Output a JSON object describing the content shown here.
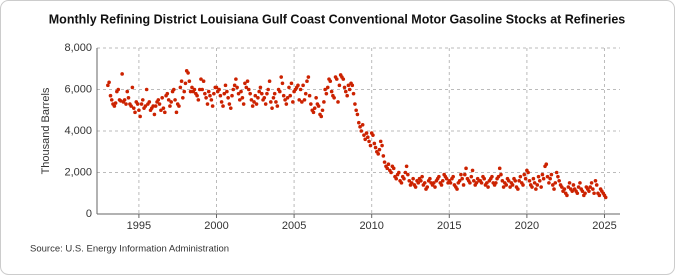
{
  "chart_data": {
    "type": "scatter",
    "title": "Monthly Refining District Louisiana Gulf Coast Conventional Motor Gasoline Stocks at Refineries",
    "y_label": "Thousand Barrels",
    "source": "Source: U.S. Energy Information Administration",
    "color": "#cc2200",
    "grid": true,
    "xlim": [
      1992.3,
      2026
    ],
    "xticks": [
      1995,
      2000,
      2005,
      2010,
      2015,
      2020,
      2025
    ],
    "ylim": [
      0,
      8000
    ],
    "yticks": [
      0,
      {
        "value": 2000,
        "label": "2,000"
      },
      {
        "value": 4000,
        "label": "4,000"
      },
      {
        "value": 6000,
        "label": "6,000"
      },
      {
        "value": 8000,
        "label": "8,000"
      }
    ],
    "x": [
      1993.0,
      1993.08,
      1993.17,
      1993.25,
      1993.33,
      1993.42,
      1993.5,
      1993.58,
      1993.67,
      1993.75,
      1993.83,
      1993.92,
      1994.0,
      1994.08,
      1994.17,
      1994.25,
      1994.33,
      1994.42,
      1994.5,
      1994.58,
      1994.67,
      1994.75,
      1994.83,
      1994.92,
      1995.0,
      1995.08,
      1995.17,
      1995.25,
      1995.33,
      1995.42,
      1995.5,
      1995.58,
      1995.67,
      1995.75,
      1995.83,
      1995.92,
      1996.0,
      1996.08,
      1996.17,
      1996.25,
      1996.33,
      1996.42,
      1996.5,
      1996.58,
      1996.67,
      1996.75,
      1996.83,
      1996.92,
      1997.0,
      1997.08,
      1997.17,
      1997.25,
      1997.33,
      1997.42,
      1997.5,
      1997.58,
      1997.67,
      1997.75,
      1997.83,
      1997.92,
      1998.0,
      1998.08,
      1998.17,
      1998.25,
      1998.33,
      1998.42,
      1998.5,
      1998.58,
      1998.67,
      1998.75,
      1998.83,
      1998.92,
      1999.0,
      1999.08,
      1999.17,
      1999.25,
      1999.33,
      1999.42,
      1999.5,
      1999.58,
      1999.67,
      1999.75,
      1999.83,
      1999.92,
      2000.0,
      2000.08,
      2000.17,
      2000.25,
      2000.33,
      2000.42,
      2000.5,
      2000.58,
      2000.67,
      2000.75,
      2000.83,
      2000.92,
      2001.0,
      2001.08,
      2001.17,
      2001.25,
      2001.33,
      2001.42,
      2001.5,
      2001.58,
      2001.67,
      2001.75,
      2001.83,
      2001.92,
      2002.0,
      2002.08,
      2002.17,
      2002.25,
      2002.33,
      2002.42,
      2002.5,
      2002.58,
      2002.67,
      2002.75,
      2002.83,
      2002.92,
      2003.0,
      2003.08,
      2003.17,
      2003.25,
      2003.33,
      2003.42,
      2003.5,
      2003.58,
      2003.67,
      2003.75,
      2003.83,
      2003.92,
      2004.0,
      2004.08,
      2004.17,
      2004.25,
      2004.33,
      2004.42,
      2004.5,
      2004.58,
      2004.67,
      2004.75,
      2004.83,
      2004.92,
      2005.0,
      2005.08,
      2005.17,
      2005.25,
      2005.33,
      2005.42,
      2005.5,
      2005.58,
      2005.67,
      2005.75,
      2005.83,
      2005.92,
      2006.0,
      2006.08,
      2006.17,
      2006.25,
      2006.33,
      2006.42,
      2006.5,
      2006.58,
      2006.67,
      2006.75,
      2006.83,
      2006.92,
      2007.0,
      2007.08,
      2007.17,
      2007.25,
      2007.33,
      2007.42,
      2007.5,
      2007.58,
      2007.67,
      2007.75,
      2007.83,
      2007.92,
      2008.0,
      2008.08,
      2008.17,
      2008.25,
      2008.33,
      2008.42,
      2008.5,
      2008.58,
      2008.67,
      2008.75,
      2008.83,
      2008.92,
      2009.0,
      2009.08,
      2009.17,
      2009.25,
      2009.33,
      2009.42,
      2009.5,
      2009.58,
      2009.67,
      2009.75,
      2009.83,
      2009.92,
      2010.0,
      2010.08,
      2010.17,
      2010.25,
      2010.33,
      2010.42,
      2010.5,
      2010.58,
      2010.67,
      2010.75,
      2010.83,
      2010.92,
      2011.0,
      2011.08,
      2011.17,
      2011.25,
      2011.33,
      2011.42,
      2011.5,
      2011.58,
      2011.67,
      2011.75,
      2011.83,
      2011.92,
      2012.0,
      2012.08,
      2012.17,
      2012.25,
      2012.33,
      2012.42,
      2012.5,
      2012.58,
      2012.67,
      2012.75,
      2012.83,
      2012.92,
      2013.0,
      2013.08,
      2013.17,
      2013.25,
      2013.33,
      2013.42,
      2013.5,
      2013.58,
      2013.67,
      2013.75,
      2013.83,
      2013.92,
      2014.0,
      2014.08,
      2014.17,
      2014.25,
      2014.33,
      2014.42,
      2014.5,
      2014.58,
      2014.67,
      2014.75,
      2014.83,
      2014.92,
      2015.0,
      2015.08,
      2015.17,
      2015.25,
      2015.33,
      2015.42,
      2015.5,
      2015.58,
      2015.67,
      2015.75,
      2015.83,
      2015.92,
      2016.0,
      2016.08,
      2016.17,
      2016.25,
      2016.33,
      2016.42,
      2016.5,
      2016.58,
      2016.67,
      2016.75,
      2016.83,
      2016.92,
      2017.0,
      2017.08,
      2017.17,
      2017.25,
      2017.33,
      2017.42,
      2017.5,
      2017.58,
      2017.67,
      2017.75,
      2017.83,
      2017.92,
      2018.0,
      2018.08,
      2018.17,
      2018.25,
      2018.33,
      2018.42,
      2018.5,
      2018.58,
      2018.67,
      2018.75,
      2018.83,
      2018.92,
      2019.0,
      2019.08,
      2019.17,
      2019.25,
      2019.33,
      2019.42,
      2019.5,
      2019.58,
      2019.67,
      2019.75,
      2019.83,
      2019.92,
      2020.0,
      2020.08,
      2020.17,
      2020.25,
      2020.33,
      2020.42,
      2020.5,
      2020.58,
      2020.67,
      2020.75,
      2020.83,
      2020.92,
      2021.0,
      2021.08,
      2021.17,
      2021.25,
      2021.33,
      2021.42,
      2021.5,
      2021.58,
      2021.67,
      2021.75,
      2021.83,
      2021.92,
      2022.0,
      2022.08,
      2022.17,
      2022.25,
      2022.33,
      2022.42,
      2022.5,
      2022.58,
      2022.67,
      2022.75,
      2022.83,
      2022.92,
      2023.0,
      2023.08,
      2023.17,
      2023.25,
      2023.33,
      2023.42,
      2023.5,
      2023.58,
      2023.67,
      2023.75,
      2023.83,
      2023.92,
      2024.0,
      2024.08,
      2024.17,
      2024.25,
      2024.33,
      2024.42,
      2024.5,
      2024.58,
      2024.67,
      2024.75,
      2024.83,
      2024.92,
      2025.0,
      2025.08
    ],
    "values": [
      6200,
      6350,
      5700,
      5500,
      5300,
      5200,
      5350,
      5900,
      6000,
      5500,
      5450,
      6750,
      5400,
      5500,
      5300,
      5900,
      5600,
      5300,
      5200,
      6100,
      5100,
      4900,
      5400,
      5300,
      5000,
      4700,
      5300,
      5500,
      5100,
      5200,
      6000,
      5300,
      5400,
      5000,
      5100,
      5200,
      4800,
      5200,
      5400,
      5500,
      5300,
      5000,
      5600,
      5100,
      4900,
      5700,
      5800,
      5500,
      5200,
      5400,
      5900,
      6000,
      5500,
      4900,
      5300,
      5200,
      6100,
      6400,
      5600,
      5900,
      6300,
      6900,
      6800,
      6400,
      5900,
      6100,
      5900,
      6000,
      5800,
      5700,
      5500,
      6000,
      6500,
      6000,
      6400,
      5800,
      5600,
      5300,
      5900,
      5700,
      5500,
      5200,
      5800,
      6100,
      6100,
      5900,
      6000,
      5700,
      5400,
      5200,
      5800,
      6200,
      5900,
      5600,
      5300,
      5100,
      5700,
      6000,
      6200,
      6500,
      6100,
      5800,
      5500,
      5900,
      5600,
      5300,
      6300,
      6100,
      6400,
      6000,
      5800,
      5500,
      5200,
      5400,
      5700,
      5300,
      5600,
      5900,
      6100,
      5800,
      5500,
      5600,
      5300,
      5800,
      6000,
      6400,
      5400,
      5100,
      5600,
      5800,
      5400,
      5200,
      6000,
      5900,
      6600,
      6300,
      5700,
      5500,
      5300,
      5600,
      6100,
      5700,
      6300,
      5400,
      5900,
      6000,
      6100,
      6200,
      5500,
      6000,
      5400,
      6200,
      5500,
      5800,
      6400,
      6600,
      5700,
      5300,
      5000,
      4900,
      5100,
      5600,
      5300,
      5200,
      4800,
      4700,
      5000,
      5400,
      6000,
      5800,
      6100,
      6500,
      6400,
      5900,
      5700,
      5600,
      6600,
      6500,
      5400,
      6200,
      6700,
      6600,
      6500,
      6100,
      5900,
      5700,
      6200,
      6000,
      6300,
      6200,
      5800,
      5300,
      5000,
      4800,
      4400,
      4200,
      4000,
      4300,
      3800,
      3600,
      3900,
      3700,
      3500,
      3300,
      3900,
      3800,
      3400,
      3200,
      3000,
      2900,
      3100,
      3500,
      3300,
      2800,
      2500,
      2300,
      2200,
      2400,
      2100,
      2000,
      2300,
      2200,
      1800,
      1700,
      1900,
      2000,
      1600,
      1500,
      1800,
      1700,
      2000,
      2300,
      1900,
      1600,
      1400,
      1500,
      1700,
      1400,
      1300,
      1600,
      1500,
      1700,
      1600,
      1800,
      1400,
      1500,
      1200,
      1300,
      1600,
      1700,
      1500,
      1400,
      1500,
      1300,
      1600,
      1700,
      1800,
      1500,
      1400,
      1600,
      1900,
      1800,
      1700,
      1500,
      1600,
      1500,
      1700,
      1800,
      1400,
      1300,
      1200,
      1500,
      1600,
      1900,
      1700,
      1400,
      1900,
      2200,
      1700,
      1600,
      1500,
      1800,
      2100,
      1600,
      1400,
      1500,
      1700,
      1600,
      1600,
      1500,
      1800,
      1700,
      1400,
      1500,
      1300,
      1600,
      1700,
      1800,
      1500,
      1400,
      1500,
      1700,
      1800,
      2200,
      1900,
      1600,
      1300,
      1500,
      1400,
      1700,
      1600,
      1300,
      1500,
      1400,
      1700,
      1600,
      1300,
      1200,
      1600,
      1800,
      1500,
      1400,
      1900,
      1700,
      2100,
      2000,
      1600,
      1400,
      1300,
      1700,
      1500,
      1200,
      1400,
      1800,
      1600,
      1300,
      1900,
      1700,
      2300,
      2400,
      1800,
      1500,
      1700,
      1900,
      1400,
      1200,
      1500,
      2000,
      1800,
      1600,
      1400,
      1300,
      1100,
      1200,
      1000,
      900,
      1300,
      1500,
      1200,
      1100,
      1400,
      1200,
      1100,
      1000,
      1300,
      1500,
      1200,
      1100,
      900,
      1000,
      1300,
      1200,
      1100,
      1300,
      1500,
      1200,
      1000,
      1600,
      1400,
      1000,
      900,
      1200,
      1100,
      1000,
      900,
      800
    ]
  }
}
